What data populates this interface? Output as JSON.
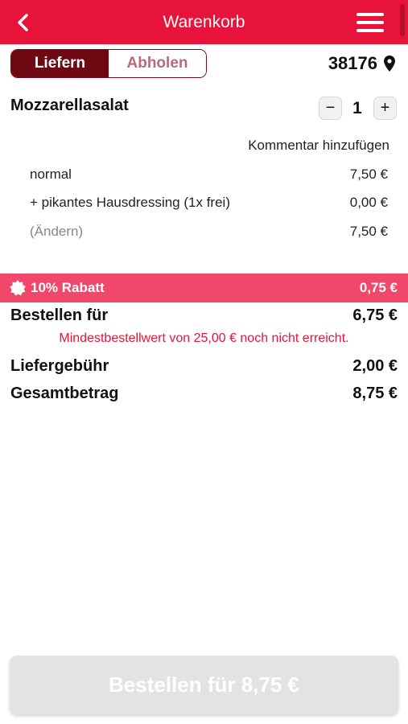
{
  "header": {
    "title": "Warenkorb",
    "back_icon": "chevron-left-icon",
    "menu_icon": "hamburger-menu-icon"
  },
  "delivery": {
    "deliver_label": "Liefern",
    "pickup_label": "Abholen",
    "selected": "Liefern",
    "postcode": "38176",
    "location_icon": "map-pin-icon"
  },
  "item": {
    "name": "Mozzarellasalat",
    "quantity": "1",
    "minus": "−",
    "plus": "+",
    "comment_label": "Kommentar hinzufügen",
    "lines": [
      {
        "label": "normal",
        "price": "7,50 €"
      },
      {
        "label": "+ pikantes Hausdressing (1x frei)",
        "price": "0,00 €"
      },
      {
        "label": "(Ändern)",
        "price": "7,50 €"
      }
    ]
  },
  "discount": {
    "label": "10% Rabatt",
    "amount": "0,75 €",
    "icon": "badge-star-icon"
  },
  "totals": {
    "order_for_label": "Bestellen für",
    "order_for_value": "6,75 €",
    "min_order_warning": "Mindestbestellwert von 25,00 € noch nicht erreicht.",
    "delivery_fee_label": "Liefergebühr",
    "delivery_fee_value": "2,00 €",
    "total_label": "Gesamtbetrag",
    "total_value": "8,75 €"
  },
  "order_button": {
    "label": "Bestellen für 8,75 €"
  },
  "colors": {
    "brand": "#e8133a",
    "discount_bar": "#f0476a",
    "toggle_active": "#6e0914"
  }
}
